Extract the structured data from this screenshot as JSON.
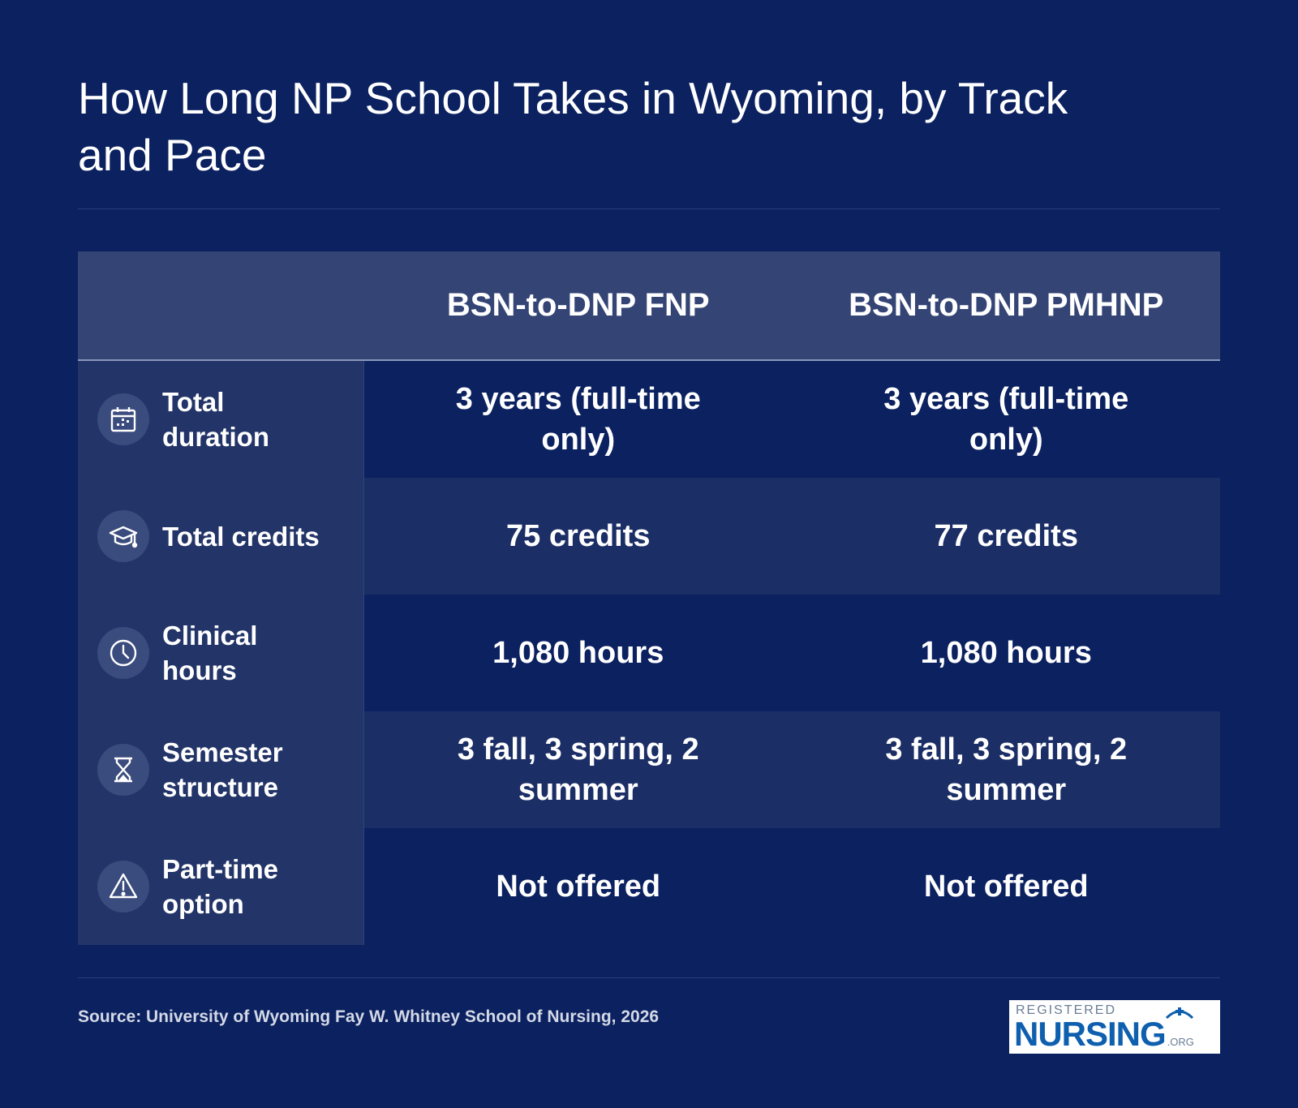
{
  "title": "How Long NP School Takes in Wyoming, by Track and Pace",
  "columns": [
    "BSN-to-DNP FNP",
    "BSN-to-DNP PMHNP"
  ],
  "rows": [
    {
      "label": "Total duration",
      "icon": "calendar-icon",
      "values": [
        "3 years (full-time only)",
        "3 years (full-time only)"
      ]
    },
    {
      "label": "Total credits",
      "icon": "graduation-cap-icon",
      "values": [
        "75 credits",
        "77 credits"
      ]
    },
    {
      "label": "Clinical hours",
      "icon": "clock-icon",
      "values": [
        "1,080 hours",
        "1,080 hours"
      ]
    },
    {
      "label": "Semester structure",
      "icon": "hourglass-icon",
      "values": [
        "3 fall, 3 spring, 2 summer",
        "3 fall, 3 spring, 2 summer"
      ]
    },
    {
      "label": "Part-time option",
      "icon": "warning-icon",
      "values": [
        "Not offered",
        "Not offered"
      ]
    }
  ],
  "source": "Source: University of Wyoming Fay W. Whitney School of Nursing, 2026",
  "logo": {
    "top": "REGISTERED",
    "main": "NURSING",
    "suffix": ".ORG"
  },
  "colors": {
    "background": "#0b2160",
    "header_row": "#344575",
    "label_column": "#223468",
    "row_alt": "#1b2e66",
    "logo_blue": "#0f5faf"
  }
}
